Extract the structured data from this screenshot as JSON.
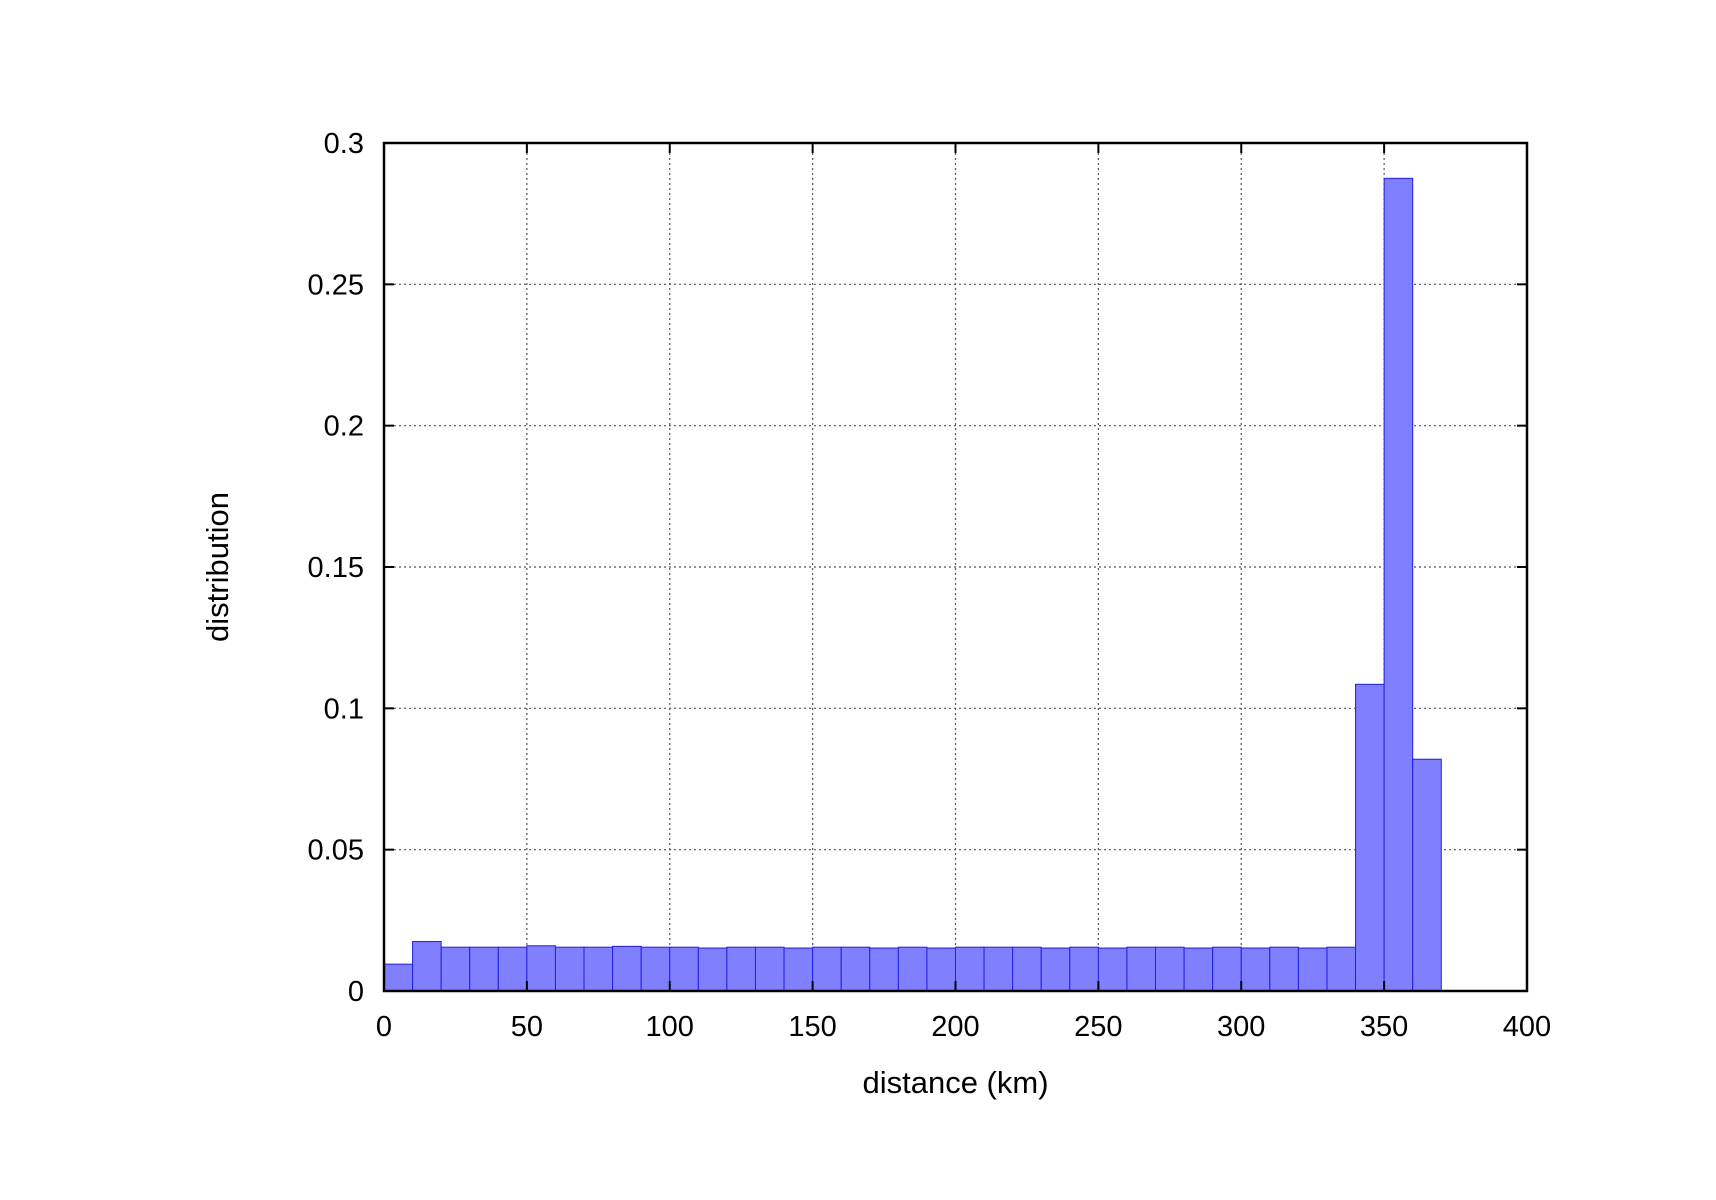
{
  "chart_data": {
    "type": "bar",
    "xlabel": "distance (km)",
    "ylabel": "distribution",
    "xlim": [
      0,
      400
    ],
    "ylim": [
      0,
      0.3
    ],
    "xticks": [
      "0",
      "50",
      "100",
      "150",
      "200",
      "250",
      "300",
      "350",
      "400"
    ],
    "yticks": [
      "0",
      "0.05",
      "0.1",
      "0.15",
      "0.2",
      "0.25",
      "0.3"
    ],
    "grid": true,
    "bin_width": 10,
    "bin_starts": [
      0,
      10,
      20,
      30,
      40,
      50,
      60,
      70,
      80,
      90,
      100,
      110,
      120,
      130,
      140,
      150,
      160,
      170,
      180,
      190,
      200,
      210,
      220,
      230,
      240,
      250,
      260,
      270,
      280,
      290,
      300,
      310,
      320,
      330,
      340,
      350,
      360
    ],
    "values": [
      0.0095,
      0.0175,
      0.0155,
      0.0155,
      0.0155,
      0.016,
      0.0155,
      0.0155,
      0.0158,
      0.0155,
      0.0155,
      0.0152,
      0.0155,
      0.0155,
      0.0152,
      0.0155,
      0.0155,
      0.0152,
      0.0155,
      0.0152,
      0.0155,
      0.0155,
      0.0155,
      0.0152,
      0.0155,
      0.0152,
      0.0155,
      0.0155,
      0.0152,
      0.0155,
      0.0152,
      0.0155,
      0.0152,
      0.0155,
      0.1085,
      0.2875,
      0.082
    ],
    "colors": {
      "bar_fill": "#8080ff",
      "bar_edge": "#2020e0",
      "grid": "#555555",
      "axis": "#000000"
    }
  }
}
